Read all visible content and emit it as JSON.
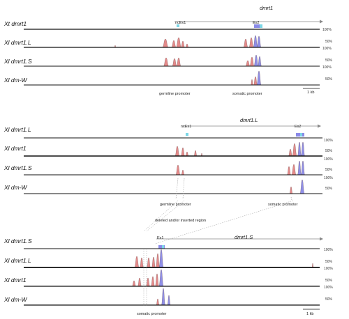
{
  "colors": {
    "conserved_noncoding": "#e48a8a",
    "conserved_exon": "#8f8fe8",
    "exon_box": "#7cd6e6",
    "exon_box_coding": "#8a8ae8",
    "axis_line": "#111111",
    "gene_arrow": "#888888",
    "guide_line": "#999999"
  },
  "percent_labels": [
    "100%",
    "50%"
  ],
  "panels": [
    {
      "reference": "Xt dmrt1",
      "gene": "dmrt1",
      "exons": [
        "ncEx1",
        "Ex2"
      ],
      "rows": [
        "Xl dmrt1.L",
        "Xl dmrt1.S",
        "Xl dm-W"
      ],
      "promoters": [
        "germline promoter",
        "somatic promoter"
      ],
      "scale": "1 kb"
    },
    {
      "reference": "Xl dmrt1.L",
      "gene": "dmrt1.L",
      "exons": [
        "ncEx1",
        "Ex2"
      ],
      "rows": [
        "Xl dmrt1",
        "Xl dmrt1.S",
        "Xl dm-W"
      ],
      "promoters": [
        "germline promoter",
        "somatic promoter"
      ]
    },
    {
      "reference": "Xl dmrt1.S",
      "gene": "dmrt1.S",
      "exons": [
        "Ex1"
      ],
      "rows": [
        "Xl dmrt1.L",
        "Xl dmrt1",
        "Xl dm-W"
      ],
      "promoters": [
        "somatic promoter"
      ],
      "scale": "1 kb"
    }
  ],
  "inserted_region_label": "deleted and/or inserted region"
}
